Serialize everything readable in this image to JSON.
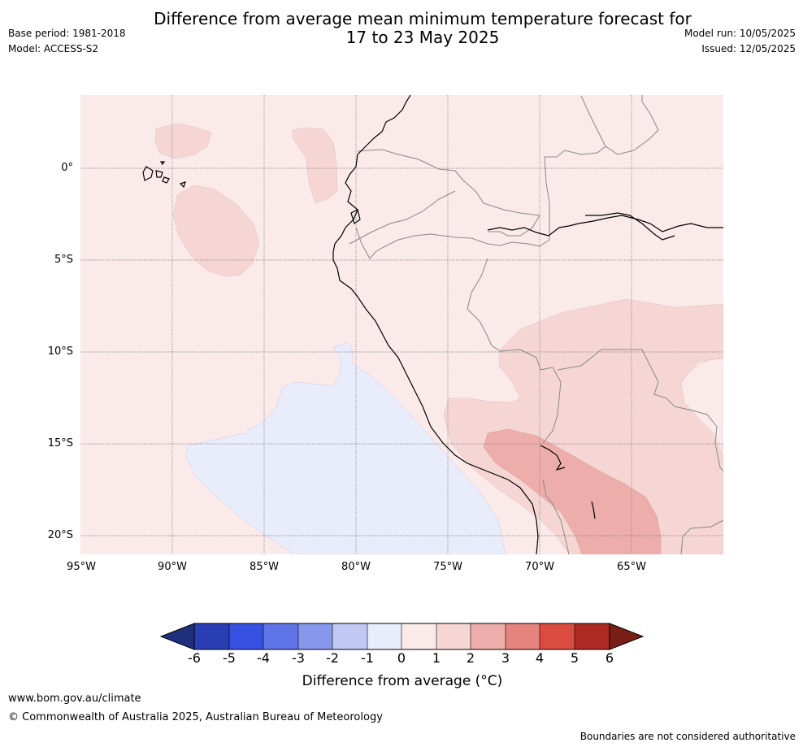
{
  "header": {
    "title_line1": "Difference from average mean minimum temperature forecast for",
    "title_line2": "17 to 23 May 2025",
    "base_period": "Base period: 1981-2018",
    "model": "Model: ACCESS-S2",
    "model_run": "Model run: 10/05/2025",
    "issued": "Issued: 12/05/2025"
  },
  "map": {
    "lat_labels": [
      "0°",
      "5°S",
      "10°S",
      "15°S",
      "20°S"
    ],
    "lon_labels": [
      "95°W",
      "90°W",
      "85°W",
      "80°W",
      "75°W",
      "70°W",
      "65°W"
    ],
    "colors": {
      "ocean_background": "#fbeaea",
      "anomaly_0_to_1_cool": "#e8ecfb",
      "anomaly_1_to_2": "#f5d6d5",
      "anomaly_2_to_3": "#edaeab",
      "coastline": "#000000",
      "border": "#888888",
      "gridline": "#777777"
    }
  },
  "colorbar": {
    "ticks": [
      "-6",
      "-5",
      "-4",
      "-3",
      "-2",
      "-1",
      "0",
      "1",
      "2",
      "3",
      "4",
      "5",
      "6"
    ],
    "colors": [
      "#1f2f7d",
      "#2a3eb4",
      "#3651e2",
      "#5f74e6",
      "#8797ec",
      "#c1c8f4",
      "#e8ecfb",
      "#fbeaea",
      "#f5d6d5",
      "#edaeab",
      "#e5837e",
      "#db4c40",
      "#ad2a22",
      "#7a1f18"
    ],
    "label": "Difference from average (°C)"
  },
  "footer": {
    "url": "www.bom.gov.au/climate",
    "copyright": "© Commonwealth of Australia 2025, Australian Bureau of Meteorology",
    "note": "Boundaries are not considered authoritative"
  }
}
